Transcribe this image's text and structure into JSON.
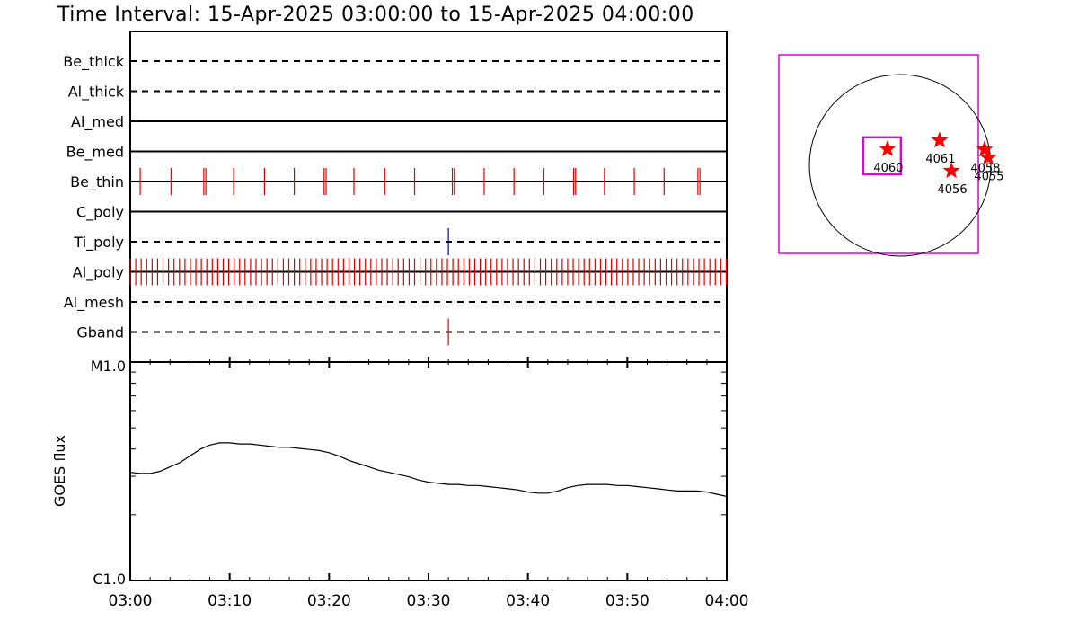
{
  "chart_data": [
    {
      "type": "timeline",
      "title": "Time Interval: 15-Apr-2025 03:00:00 to 15-Apr-2025 04:00:00",
      "x_ticks": [
        "03:00",
        "03:10",
        "03:20",
        "03:30",
        "03:40",
        "03:50",
        "04:00"
      ],
      "xlim": [
        0,
        60
      ],
      "rows": [
        {
          "label": "Be_thick",
          "line": "dashed",
          "events": []
        },
        {
          "label": "Al_thick",
          "line": "dashed",
          "events": []
        },
        {
          "label": "Al_med",
          "line": "solid",
          "events": []
        },
        {
          "label": "Be_med",
          "line": "solid",
          "events": []
        },
        {
          "label": "Be_thin",
          "line": "solid",
          "event_color": "#e00000",
          "events": [
            1,
            4.1,
            7.4,
            7.6,
            10.4,
            13.5,
            16.5,
            19.5,
            19.7,
            22.5,
            25.6,
            28.6,
            32.4,
            32.6,
            35.6,
            38.6,
            41.6,
            44.6,
            44.8,
            47.7,
            50.7,
            53.7,
            57.1,
            57.3
          ]
        },
        {
          "label": "C_poly",
          "line": "solid",
          "events": []
        },
        {
          "label": "Ti_poly",
          "line": "dashed",
          "event_color": "#0000cc",
          "events": [
            32.0
          ]
        },
        {
          "label": "Al_poly",
          "line": "solid",
          "event_color": "#e00000",
          "event_interval": 0.55,
          "event_range": [
            0,
            60
          ]
        },
        {
          "label": "Al_mesh",
          "line": "dashed",
          "events": []
        },
        {
          "label": "Gband",
          "line": "dashed",
          "event_color": "#e00000",
          "events": [
            32.0
          ]
        }
      ]
    },
    {
      "type": "line",
      "ylabel": "GOES flux",
      "y_ticks": [
        "M1.0",
        "C1.0"
      ],
      "ylim_log": [
        -6,
        -5
      ],
      "x_ticks": [
        "03:00",
        "03:10",
        "03:20",
        "03:30",
        "03:40",
        "03:50",
        "04:00"
      ],
      "xlim": [
        0,
        60
      ],
      "series": [
        {
          "x": [
            0,
            1,
            2,
            3,
            4,
            5,
            6,
            7,
            8,
            9,
            10,
            11,
            12,
            13,
            14,
            15,
            16,
            17,
            18,
            19,
            20,
            21,
            22,
            23,
            24,
            25,
            26,
            27,
            28,
            29,
            30,
            31,
            32,
            33,
            34,
            35,
            36,
            37,
            38,
            39,
            40,
            41,
            42,
            43,
            44,
            45,
            46,
            47,
            48,
            49,
            50,
            51,
            52,
            53,
            54,
            55,
            56,
            57,
            58,
            59,
            60
          ],
          "y": [
            -5.505,
            -5.51,
            -5.51,
            -5.5,
            -5.48,
            -5.46,
            -5.43,
            -5.4,
            -5.38,
            -5.37,
            -5.37,
            -5.375,
            -5.375,
            -5.38,
            -5.385,
            -5.39,
            -5.39,
            -5.395,
            -5.4,
            -5.405,
            -5.415,
            -5.43,
            -5.45,
            -5.465,
            -5.48,
            -5.495,
            -5.505,
            -5.515,
            -5.525,
            -5.54,
            -5.55,
            -5.555,
            -5.56,
            -5.56,
            -5.565,
            -5.565,
            -5.57,
            -5.575,
            -5.58,
            -5.585,
            -5.595,
            -5.6,
            -5.6,
            -5.59,
            -5.575,
            -5.565,
            -5.56,
            -5.56,
            -5.56,
            -5.565,
            -5.565,
            -5.57,
            -5.575,
            -5.58,
            -5.585,
            -5.59,
            -5.59,
            -5.59,
            -5.595,
            -5.605,
            -5.615
          ]
        }
      ]
    },
    {
      "type": "scatter",
      "panel": "solar-disk-map",
      "points": [
        {
          "label": "4060",
          "x": -140,
          "y": 180
        },
        {
          "label": "4061",
          "x": 435,
          "y": 275
        },
        {
          "label": "4058",
          "x": 930,
          "y": 175
        },
        {
          "label": "4055",
          "x": 970,
          "y": 85
        },
        {
          "label": "4056",
          "x": 565,
          "y": -60
        }
      ]
    }
  ]
}
